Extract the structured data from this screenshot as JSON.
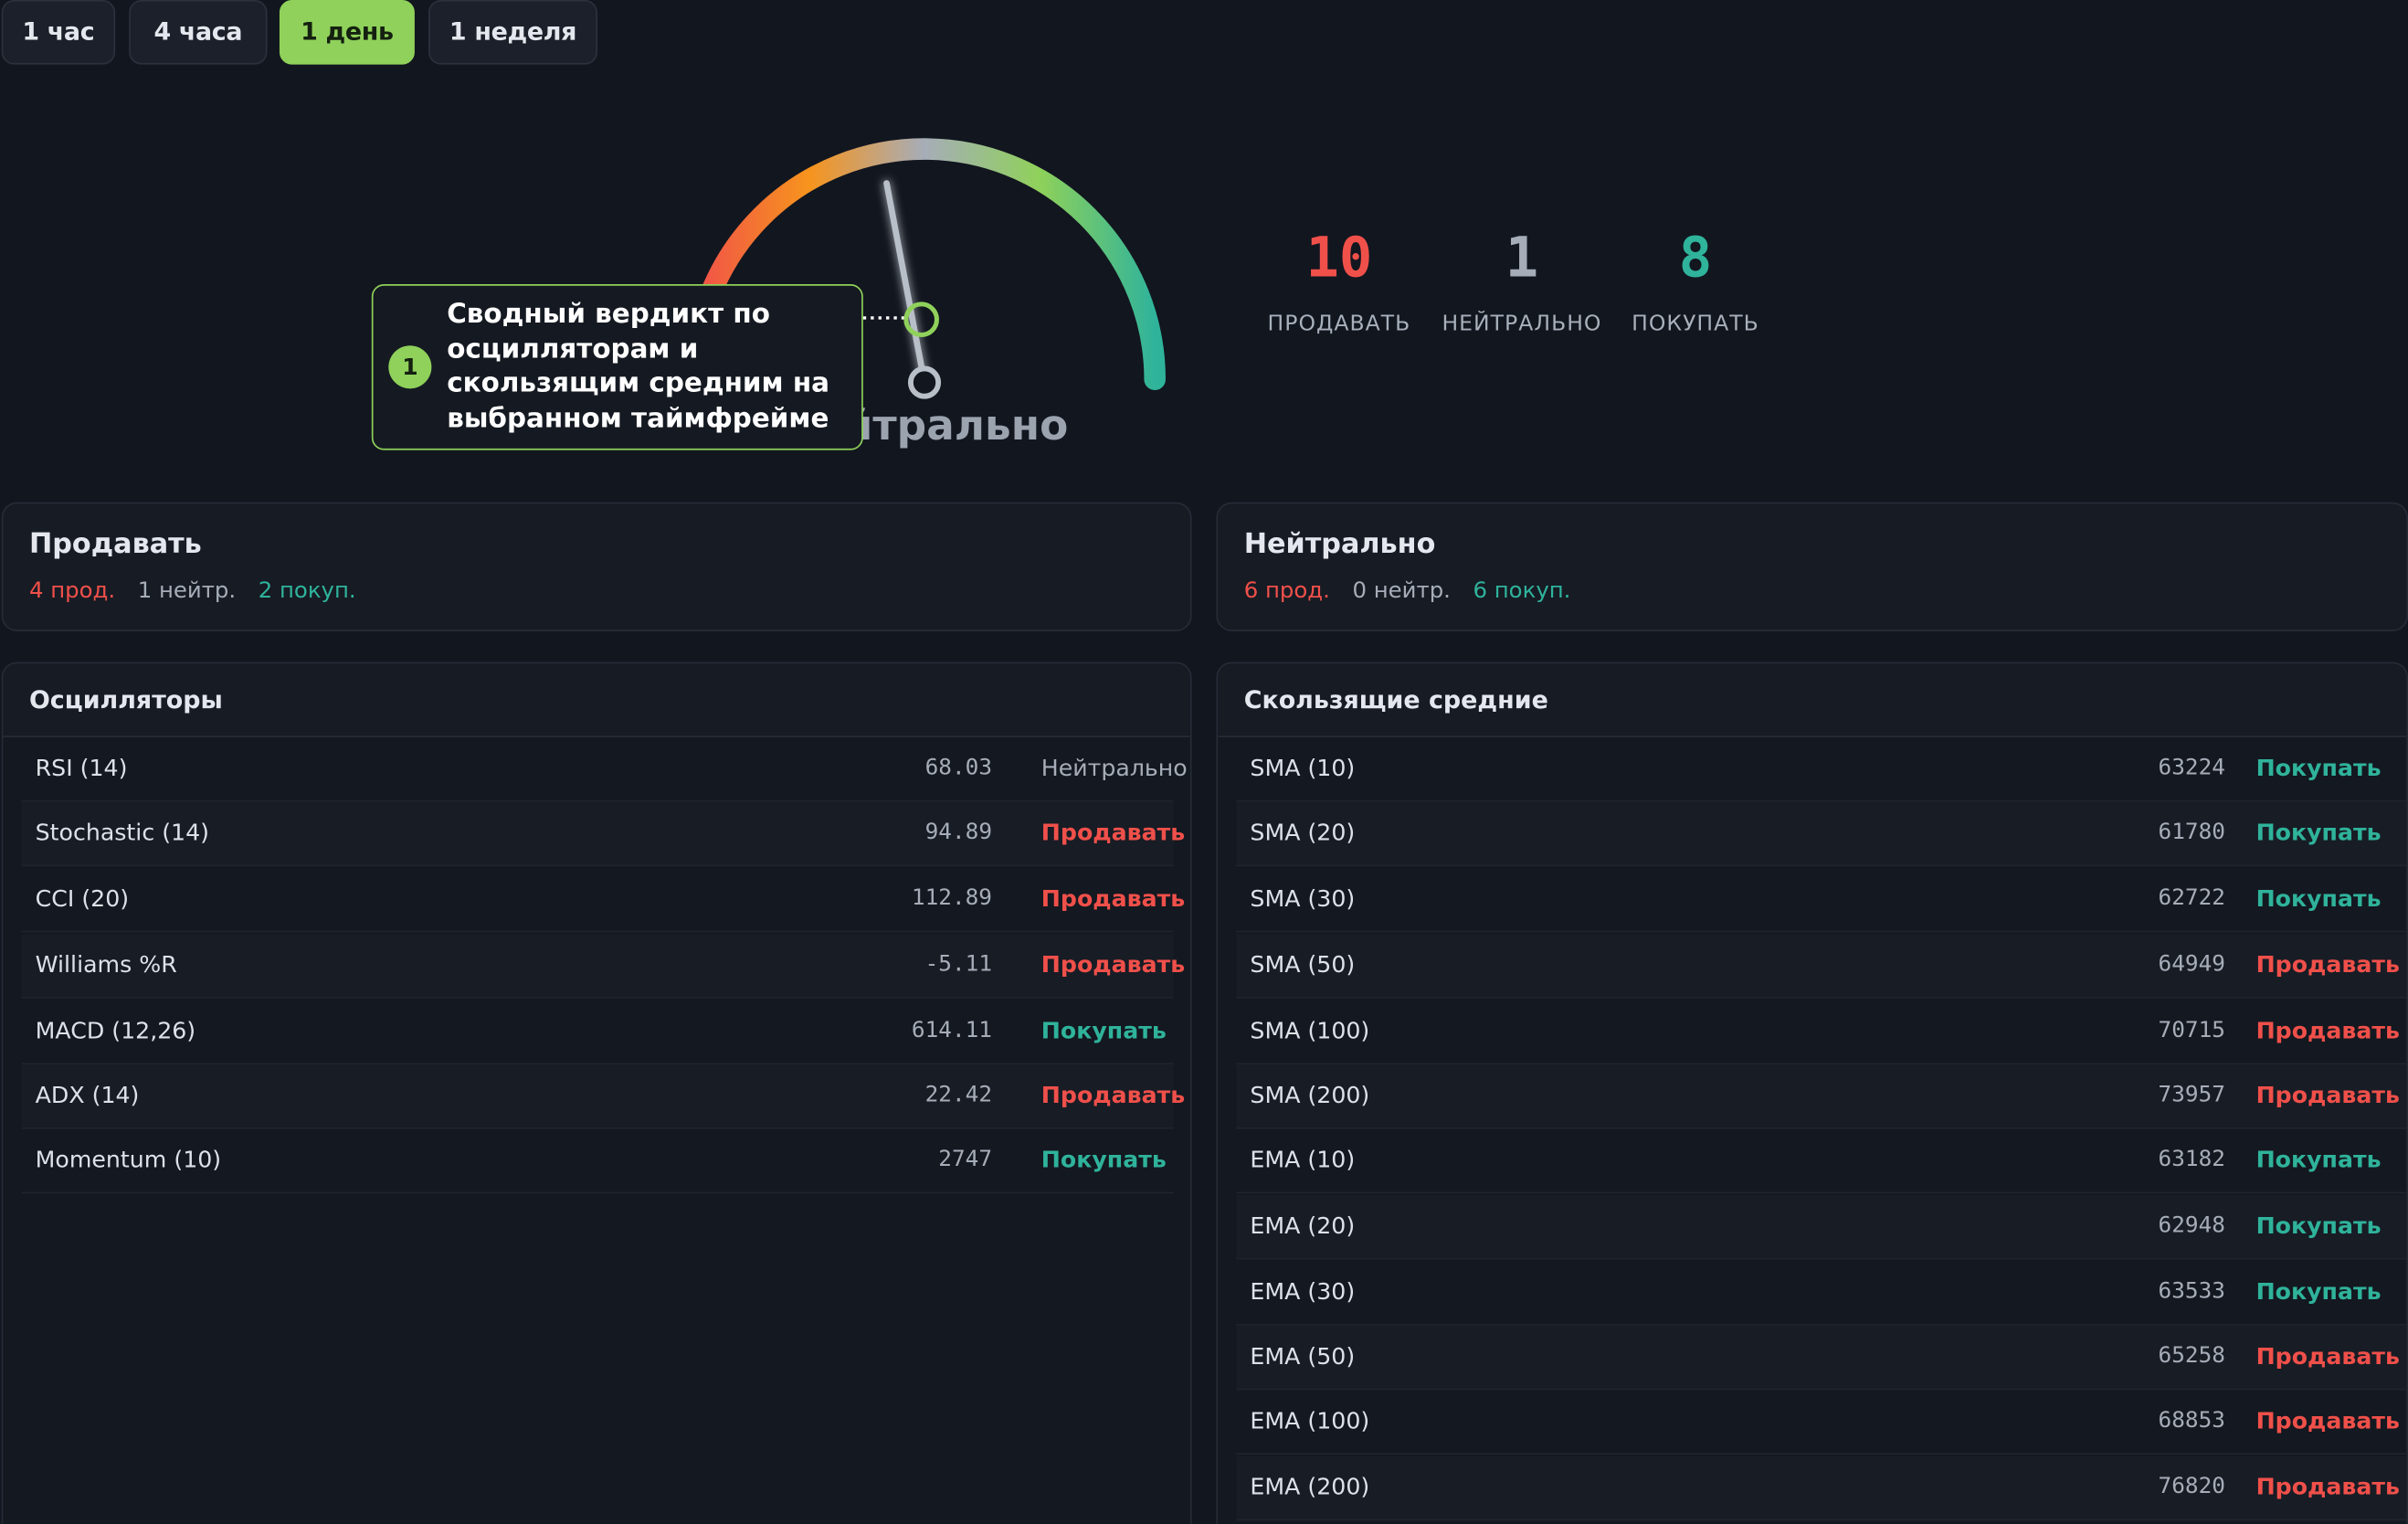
{
  "timeframes": [
    {
      "label": "1 час",
      "active": false
    },
    {
      "label": "4 часа",
      "active": false
    },
    {
      "label": "1 день",
      "active": true
    },
    {
      "label": "1 неделя",
      "active": false
    }
  ],
  "gauge": {
    "verdict": "Нейтрально",
    "needle_value": -0.12,
    "colors": [
      "#f0504a",
      "#f7941d",
      "#a6adb8",
      "#8fd15a",
      "#2fb39b"
    ]
  },
  "callout": {
    "number": "1",
    "text": "Сводный вердикт по осцилляторам и скользящим средним на выбранном таймфрейме"
  },
  "counts": {
    "sell": {
      "value": "10",
      "label": "ПРОДАВАТЬ",
      "color": "#f0504a"
    },
    "neutral": {
      "value": "1",
      "label": "НЕЙТРАЛЬНО",
      "color": "#a6adb8"
    },
    "buy": {
      "value": "8",
      "label": "ПОКУПАТЬ",
      "color": "#2fb39b"
    }
  },
  "summary_oscillators": {
    "title": "Продавать",
    "sell": "4 прод.",
    "neutral": "1 нейтр.",
    "buy": "2 покуп."
  },
  "summary_ma": {
    "title": "Нейтрально",
    "sell": "6 прод.",
    "neutral": "0 нейтр.",
    "buy": "6 покуп."
  },
  "oscillators": {
    "title": "Осцилляторы",
    "rows": [
      {
        "name": "RSI (14)",
        "value": "68.03",
        "signal": "Нейтрально",
        "type": "neutral"
      },
      {
        "name": "Stochastic (14)",
        "value": "94.89",
        "signal": "Продавать",
        "type": "sell"
      },
      {
        "name": "CCI (20)",
        "value": "112.89",
        "signal": "Продавать",
        "type": "sell"
      },
      {
        "name": "Williams %R",
        "value": "-5.11",
        "signal": "Продавать",
        "type": "sell"
      },
      {
        "name": "MACD (12,26)",
        "value": "614.11",
        "signal": "Покупать",
        "type": "buy"
      },
      {
        "name": "ADX (14)",
        "value": "22.42",
        "signal": "Продавать",
        "type": "sell"
      },
      {
        "name": "Momentum (10)",
        "value": "2747",
        "signal": "Покупать",
        "type": "buy"
      }
    ]
  },
  "moving_averages": {
    "title": "Скользящие средние",
    "rows": [
      {
        "name": "SMA (10)",
        "value": "63224",
        "signal": "Покупать",
        "type": "buy"
      },
      {
        "name": "SMA (20)",
        "value": "61780",
        "signal": "Покупать",
        "type": "buy"
      },
      {
        "name": "SMA (30)",
        "value": "62722",
        "signal": "Покупать",
        "type": "buy"
      },
      {
        "name": "SMA (50)",
        "value": "64949",
        "signal": "Продавать",
        "type": "sell"
      },
      {
        "name": "SMA (100)",
        "value": "70715",
        "signal": "Продавать",
        "type": "sell"
      },
      {
        "name": "SMA (200)",
        "value": "73957",
        "signal": "Продавать",
        "type": "sell"
      },
      {
        "name": "EMA (10)",
        "value": "63182",
        "signal": "Покупать",
        "type": "buy"
      },
      {
        "name": "EMA (20)",
        "value": "62948",
        "signal": "Покупать",
        "type": "buy"
      },
      {
        "name": "EMA (30)",
        "value": "63533",
        "signal": "Покупать",
        "type": "buy"
      },
      {
        "name": "EMA (50)",
        "value": "65258",
        "signal": "Продавать",
        "type": "sell"
      },
      {
        "name": "EMA (100)",
        "value": "68853",
        "signal": "Продавать",
        "type": "sell"
      },
      {
        "name": "EMA (200)",
        "value": "76820",
        "signal": "Продавать",
        "type": "sell"
      }
    ]
  }
}
